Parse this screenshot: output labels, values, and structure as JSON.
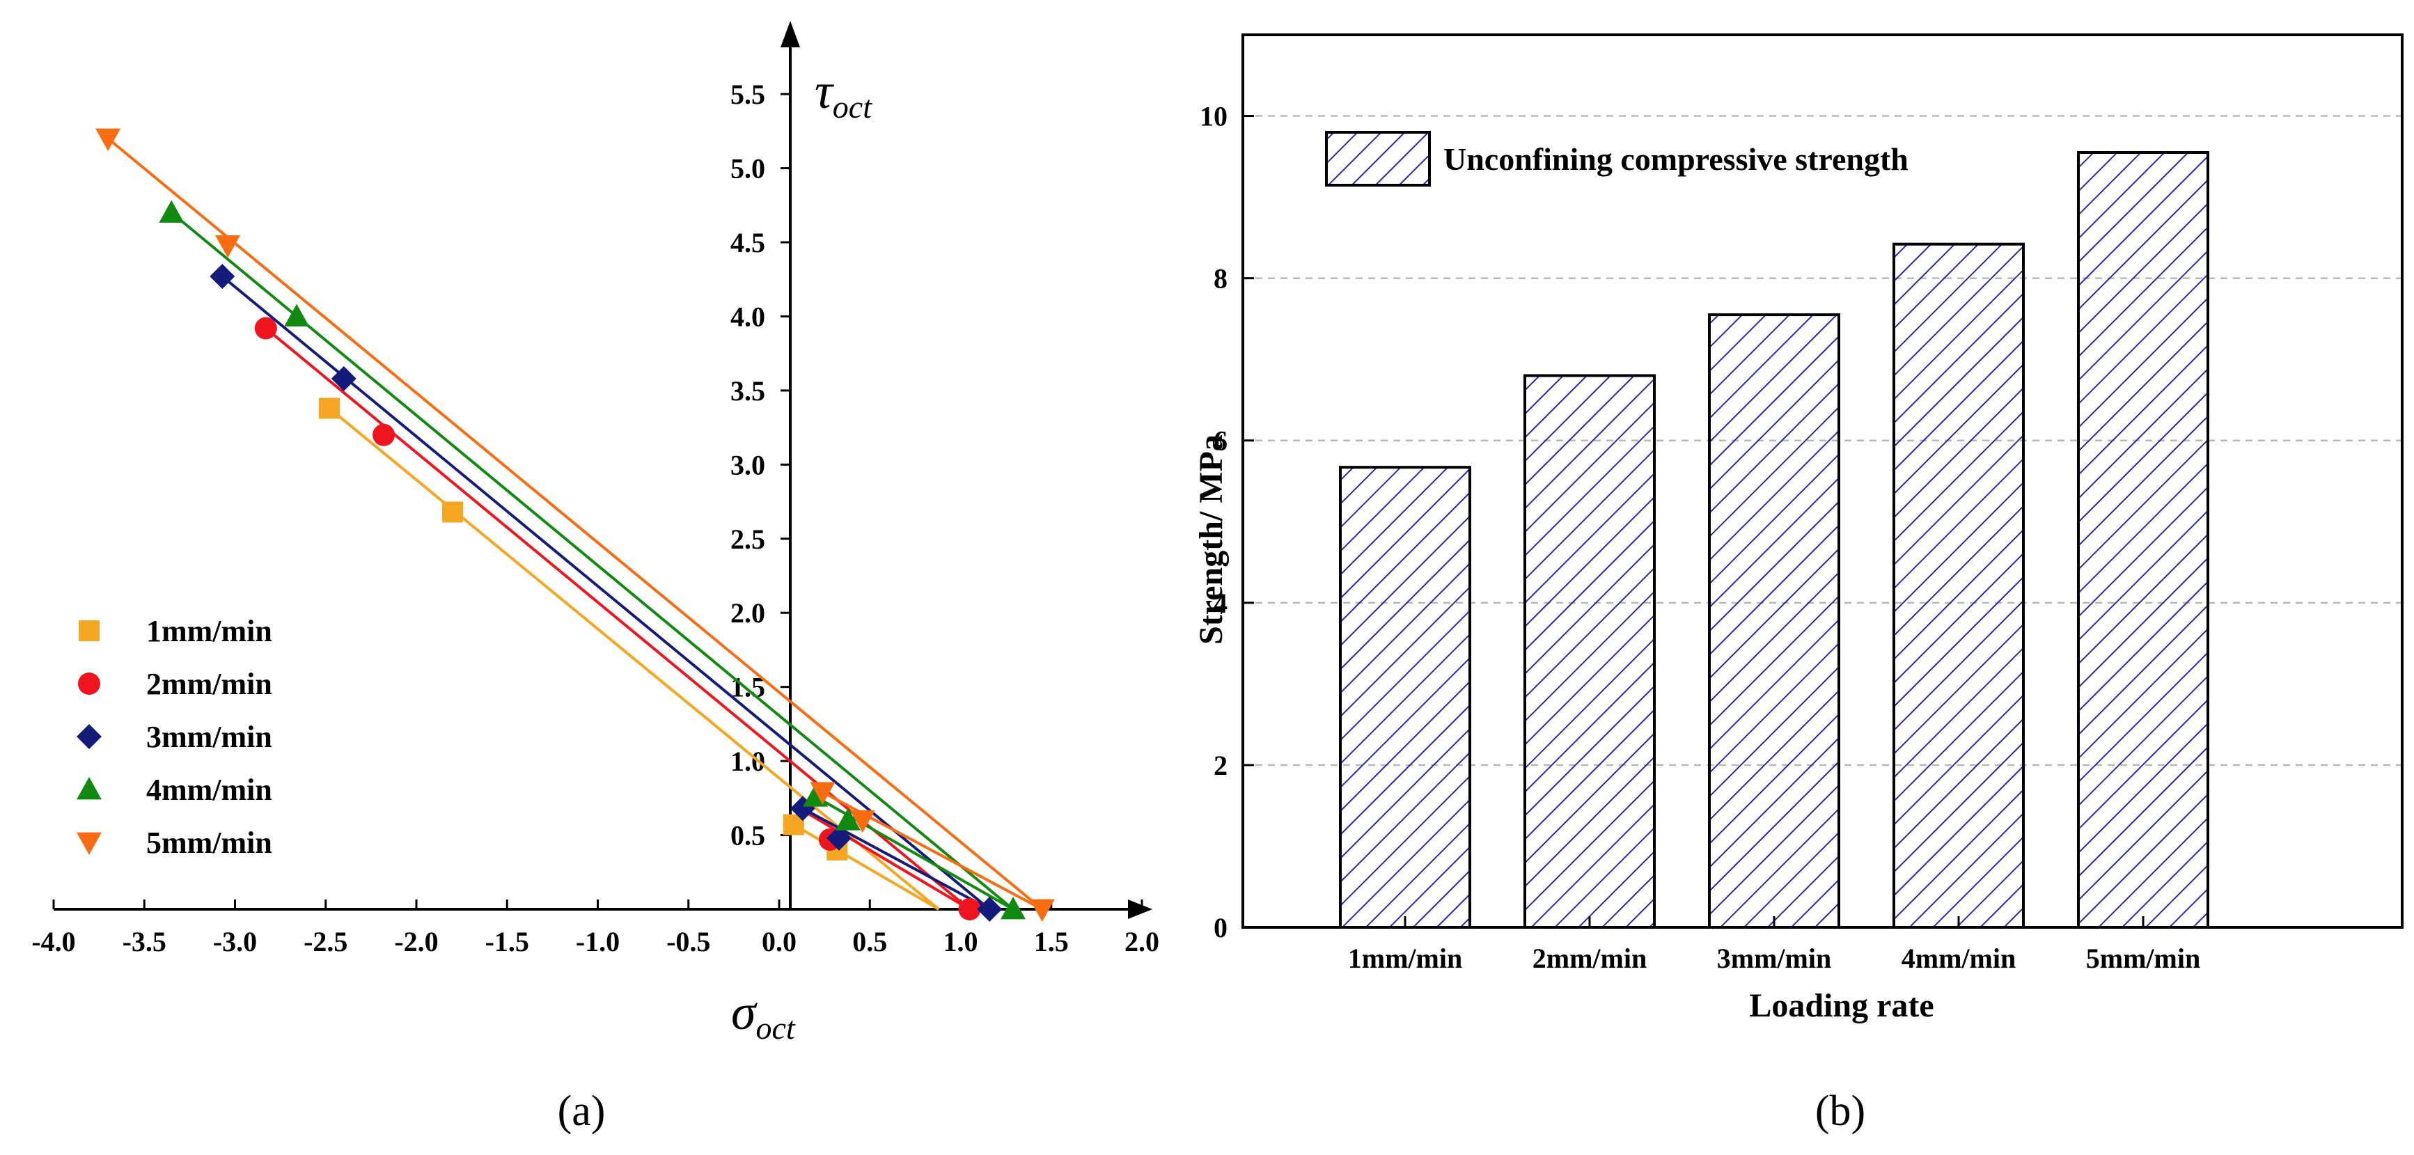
{
  "captions": {
    "a": "(a)",
    "b": "(b)"
  },
  "colors": {
    "1mm/min": "#f5a623",
    "2mm/min": "#f0141e",
    "3mm/min": "#151b7a",
    "4mm/min": "#128a12",
    "5mm/min": "#f86c12",
    "hatch": "#2a2aa8"
  },
  "chart_data": [
    {
      "id": "a",
      "type": "scatter",
      "title": "",
      "xlabel": {
        "main": "σ",
        "sub": "oct"
      },
      "ylabel": {
        "main": "τ",
        "sub": "oct"
      },
      "xlim": [
        -4.0,
        2.0
      ],
      "ylim": [
        0,
        5.9
      ],
      "xticks": [
        -4.0,
        -3.5,
        -3.0,
        -2.5,
        -2.0,
        -1.5,
        -1.0,
        -0.5,
        0.0,
        0.5,
        1.0,
        1.5,
        2.0
      ],
      "xtick_labels": [
        "-4.0",
        "-3.5",
        "-3.0",
        "-2.5",
        "-2.0",
        "-1.5",
        "-1.0",
        "-0.5",
        "0.0",
        "0.5",
        "1.0",
        "1.5",
        "2.0"
      ],
      "yticks": [
        0.5,
        1.0,
        1.5,
        2.0,
        2.5,
        3.0,
        3.5,
        4.0,
        4.5,
        5.0,
        5.5
      ],
      "ytick_labels": [
        "0.5",
        "1.0",
        "1.5",
        "2.0",
        "2.5",
        "3.0",
        "3.5",
        "4.0",
        "4.5",
        "5.0",
        "5.5"
      ],
      "legend_position": "bottom-left",
      "series": [
        {
          "name": "1mm/min",
          "marker": "square",
          "points": [
            [
              -2.48,
              3.38
            ],
            [
              -1.8,
              2.68
            ],
            [
              0.08,
              0.57
            ],
            [
              0.32,
              0.4
            ]
          ],
          "line": [
            [
              -2.48,
              3.38
            ],
            [
              0.88,
              0.0
            ]
          ],
          "tension": [
            [
              0.08,
              0.57
            ],
            [
              0.88,
              0.0
            ]
          ]
        },
        {
          "name": "2mm/min",
          "marker": "circle",
          "points": [
            [
              -2.83,
              3.92
            ],
            [
              -2.18,
              3.2
            ],
            [
              0.28,
              0.47
            ],
            [
              1.05,
              0.0
            ]
          ],
          "line": [
            [
              -2.83,
              3.92
            ],
            [
              1.05,
              0.0
            ]
          ],
          "tension": [
            [
              0.14,
              0.66
            ],
            [
              1.05,
              0.0
            ]
          ]
        },
        {
          "name": "3mm/min",
          "marker": "diamond",
          "points": [
            [
              -3.07,
              4.27
            ],
            [
              -2.4,
              3.58
            ],
            [
              0.13,
              0.68
            ],
            [
              0.33,
              0.48
            ],
            [
              1.16,
              0.0
            ]
          ],
          "line": [
            [
              -3.07,
              4.27
            ],
            [
              1.16,
              0.0
            ]
          ],
          "tension": [
            [
              0.13,
              0.68
            ],
            [
              1.16,
              0.0
            ]
          ]
        },
        {
          "name": "4mm/min",
          "marker": "triangle-up",
          "points": [
            [
              -3.35,
              4.7
            ],
            [
              -2.66,
              4.0
            ],
            [
              0.2,
              0.76
            ],
            [
              0.38,
              0.6
            ],
            [
              1.29,
              0.0
            ]
          ],
          "line": [
            [
              -3.35,
              4.7
            ],
            [
              1.29,
              0.0
            ]
          ],
          "tension": [
            [
              0.2,
              0.76
            ],
            [
              1.29,
              0.0
            ]
          ]
        },
        {
          "name": "5mm/min",
          "marker": "triangle-down",
          "points": [
            [
              -3.7,
              5.2
            ],
            [
              -3.04,
              4.48
            ],
            [
              0.24,
              0.79
            ],
            [
              0.46,
              0.6
            ],
            [
              1.45,
              0.0
            ]
          ],
          "line": [
            [
              -3.7,
              5.2
            ],
            [
              1.45,
              0.0
            ]
          ],
          "tension": [
            [
              0.24,
              0.79
            ],
            [
              1.45,
              0.0
            ]
          ]
        }
      ]
    },
    {
      "id": "b",
      "type": "bar",
      "title": "",
      "xlabel": "Loading rate",
      "ylabel": "Strength/ MPa",
      "ylim": [
        0,
        11
      ],
      "yticks": [
        0,
        2,
        4,
        6,
        8,
        10
      ],
      "ytick_labels": [
        "0",
        "2",
        "4",
        "6",
        "8",
        "10"
      ],
      "grid": true,
      "categories": [
        "1mm/min",
        "2mm/min",
        "3mm/min",
        "4mm/min",
        "5mm/min"
      ],
      "series": [
        {
          "name": "Unconfining compressive strength",
          "values": [
            5.67,
            6.8,
            7.55,
            8.42,
            9.55
          ]
        }
      ],
      "legend_position": "top-left"
    }
  ]
}
